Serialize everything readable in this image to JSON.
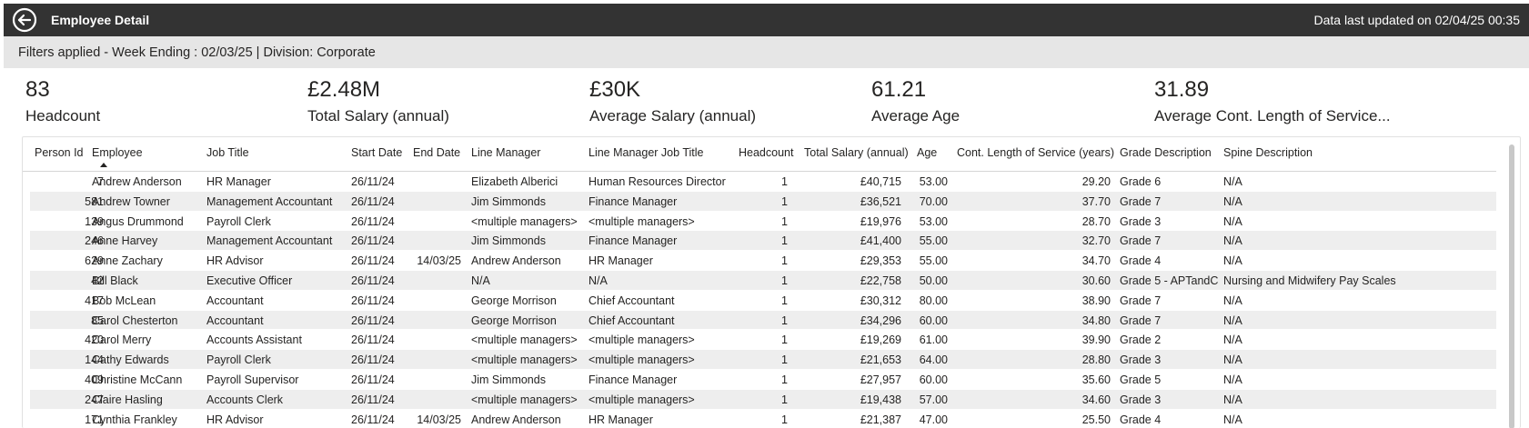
{
  "topbar": {
    "title": "Employee Detail",
    "updated": "Data last updated on 02/04/25 00:35",
    "back_icon": "back-arrow-circle-icon"
  },
  "filters": {
    "text": "Filters applied - Week Ending : 02/03/25 | Division: Corporate"
  },
  "kpis": [
    {
      "value": "83",
      "label": "Headcount"
    },
    {
      "value": "£2.48M",
      "label": "Total Salary (annual)"
    },
    {
      "value": "£30K",
      "label": "Average Salary (annual)"
    },
    {
      "value": "61.21",
      "label": "Average Age"
    },
    {
      "value": "31.89",
      "label": "Average Cont. Length of Service..."
    }
  ],
  "table": {
    "columns": [
      "Person Id",
      "Employee",
      "Job Title",
      "Start Date",
      "End Date",
      "Line Manager",
      "Line Manager Job Title",
      "Headcount",
      "Total Salary (annual)",
      "Age",
      "Cont. Length of Service (years)",
      "Grade Description",
      "Spine Description"
    ],
    "sorted_column": "Employee",
    "rows": [
      [
        "7",
        "Andrew Anderson",
        "HR Manager",
        "26/11/24",
        "",
        "Elizabeth Alberici",
        "Human Resources Director",
        "1",
        "£40,715",
        "53.00",
        "29.20",
        "Grade 6",
        "N/A"
      ],
      [
        "581",
        "Andrew Towner",
        "Management Accountant",
        "26/11/24",
        "",
        "Jim Simmonds",
        "Finance Manager",
        "1",
        "£36,521",
        "70.00",
        "37.70",
        "Grade 7",
        "N/A"
      ],
      [
        "139",
        "Angus Drummond",
        "Payroll Clerk",
        "26/11/24",
        "",
        "<multiple managers>",
        "<multiple managers>",
        "1",
        "£19,976",
        "53.00",
        "28.70",
        "Grade 3",
        "N/A"
      ],
      [
        "246",
        "Anne Harvey",
        "Management Accountant",
        "26/11/24",
        "",
        "Jim Simmonds",
        "Finance Manager",
        "1",
        "£41,400",
        "55.00",
        "32.70",
        "Grade 7",
        "N/A"
      ],
      [
        "629",
        "Anne Zachary",
        "HR Advisor",
        "26/11/24",
        "14/03/25",
        "Andrew Anderson",
        "HR Manager",
        "1",
        "£29,353",
        "55.00",
        "34.70",
        "Grade 4",
        "N/A"
      ],
      [
        "42",
        "Bill Black",
        "Executive Officer",
        "26/11/24",
        "",
        "N/A",
        "N/A",
        "1",
        "£22,758",
        "50.00",
        "30.60",
        "Grade 5 - APTandC",
        "Nursing and Midwifery Pay Scales"
      ],
      [
        "417",
        "Bob McLean",
        "Accountant",
        "26/11/24",
        "",
        "George Morrison",
        "Chief Accountant",
        "1",
        "£30,312",
        "80.00",
        "38.90",
        "Grade 7",
        "N/A"
      ],
      [
        "85",
        "Carol Chesterton",
        "Accountant",
        "26/11/24",
        "",
        "George Morrison",
        "Chief Accountant",
        "1",
        "£34,296",
        "60.00",
        "34.80",
        "Grade 7",
        "N/A"
      ],
      [
        "420",
        "Carol Merry",
        "Accounts Assistant",
        "26/11/24",
        "",
        "<multiple managers>",
        "<multiple managers>",
        "1",
        "£19,269",
        "61.00",
        "39.90",
        "Grade 2",
        "N/A"
      ],
      [
        "144",
        "Cathy Edwards",
        "Payroll Clerk",
        "26/11/24",
        "",
        "<multiple managers>",
        "<multiple managers>",
        "1",
        "£21,653",
        "64.00",
        "28.80",
        "Grade 3",
        "N/A"
      ],
      [
        "409",
        "Christine McCann",
        "Payroll Supervisor",
        "26/11/24",
        "",
        "Jim Simmonds",
        "Finance Manager",
        "1",
        "£27,957",
        "60.00",
        "35.60",
        "Grade 5",
        "N/A"
      ],
      [
        "247",
        "Claire Hasling",
        "Accounts Clerk",
        "26/11/24",
        "",
        "<multiple managers>",
        "<multiple managers>",
        "1",
        "£19,438",
        "57.00",
        "34.60",
        "Grade 3",
        "N/A"
      ],
      [
        "171",
        "Cynthia Frankley",
        "HR Advisor",
        "26/11/24",
        "14/03/25",
        "Andrew Anderson",
        "HR Manager",
        "1",
        "£21,387",
        "47.00",
        "25.50",
        "Grade 4",
        "N/A"
      ]
    ]
  }
}
